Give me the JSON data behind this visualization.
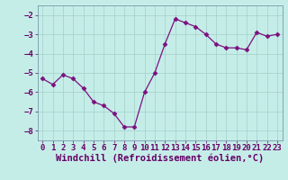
{
  "x": [
    0,
    1,
    2,
    3,
    4,
    5,
    6,
    7,
    8,
    9,
    10,
    11,
    12,
    13,
    14,
    15,
    16,
    17,
    18,
    19,
    20,
    21,
    22,
    23
  ],
  "y": [
    -5.3,
    -5.6,
    -5.1,
    -5.3,
    -5.8,
    -6.5,
    -6.7,
    -7.1,
    -7.8,
    -7.8,
    -6.0,
    -5.0,
    -3.5,
    -2.2,
    -2.4,
    -2.6,
    -3.0,
    -3.5,
    -3.7,
    -3.7,
    -3.8,
    -2.9,
    -3.1,
    -3.0
  ],
  "line_color": "#7B1080",
  "marker": "D",
  "marker_size": 2.5,
  "bg_color": "#C5EDE8",
  "grid_color": "#A8D4CE",
  "xlabel": "Windchill (Refroidissement éolien,°C)",
  "xlabel_fontsize": 7.5,
  "tick_fontsize": 6.5,
  "ylim": [
    -8.5,
    -1.5
  ],
  "xlim": [
    -0.5,
    23.5
  ],
  "yticks": [
    -8,
    -7,
    -6,
    -5,
    -4,
    -3,
    -2
  ],
  "xticks": [
    0,
    1,
    2,
    3,
    4,
    5,
    6,
    7,
    8,
    9,
    10,
    11,
    12,
    13,
    14,
    15,
    16,
    17,
    18,
    19,
    20,
    21,
    22,
    23
  ],
  "text_color": "#660066",
  "spine_color": "#7799AA"
}
